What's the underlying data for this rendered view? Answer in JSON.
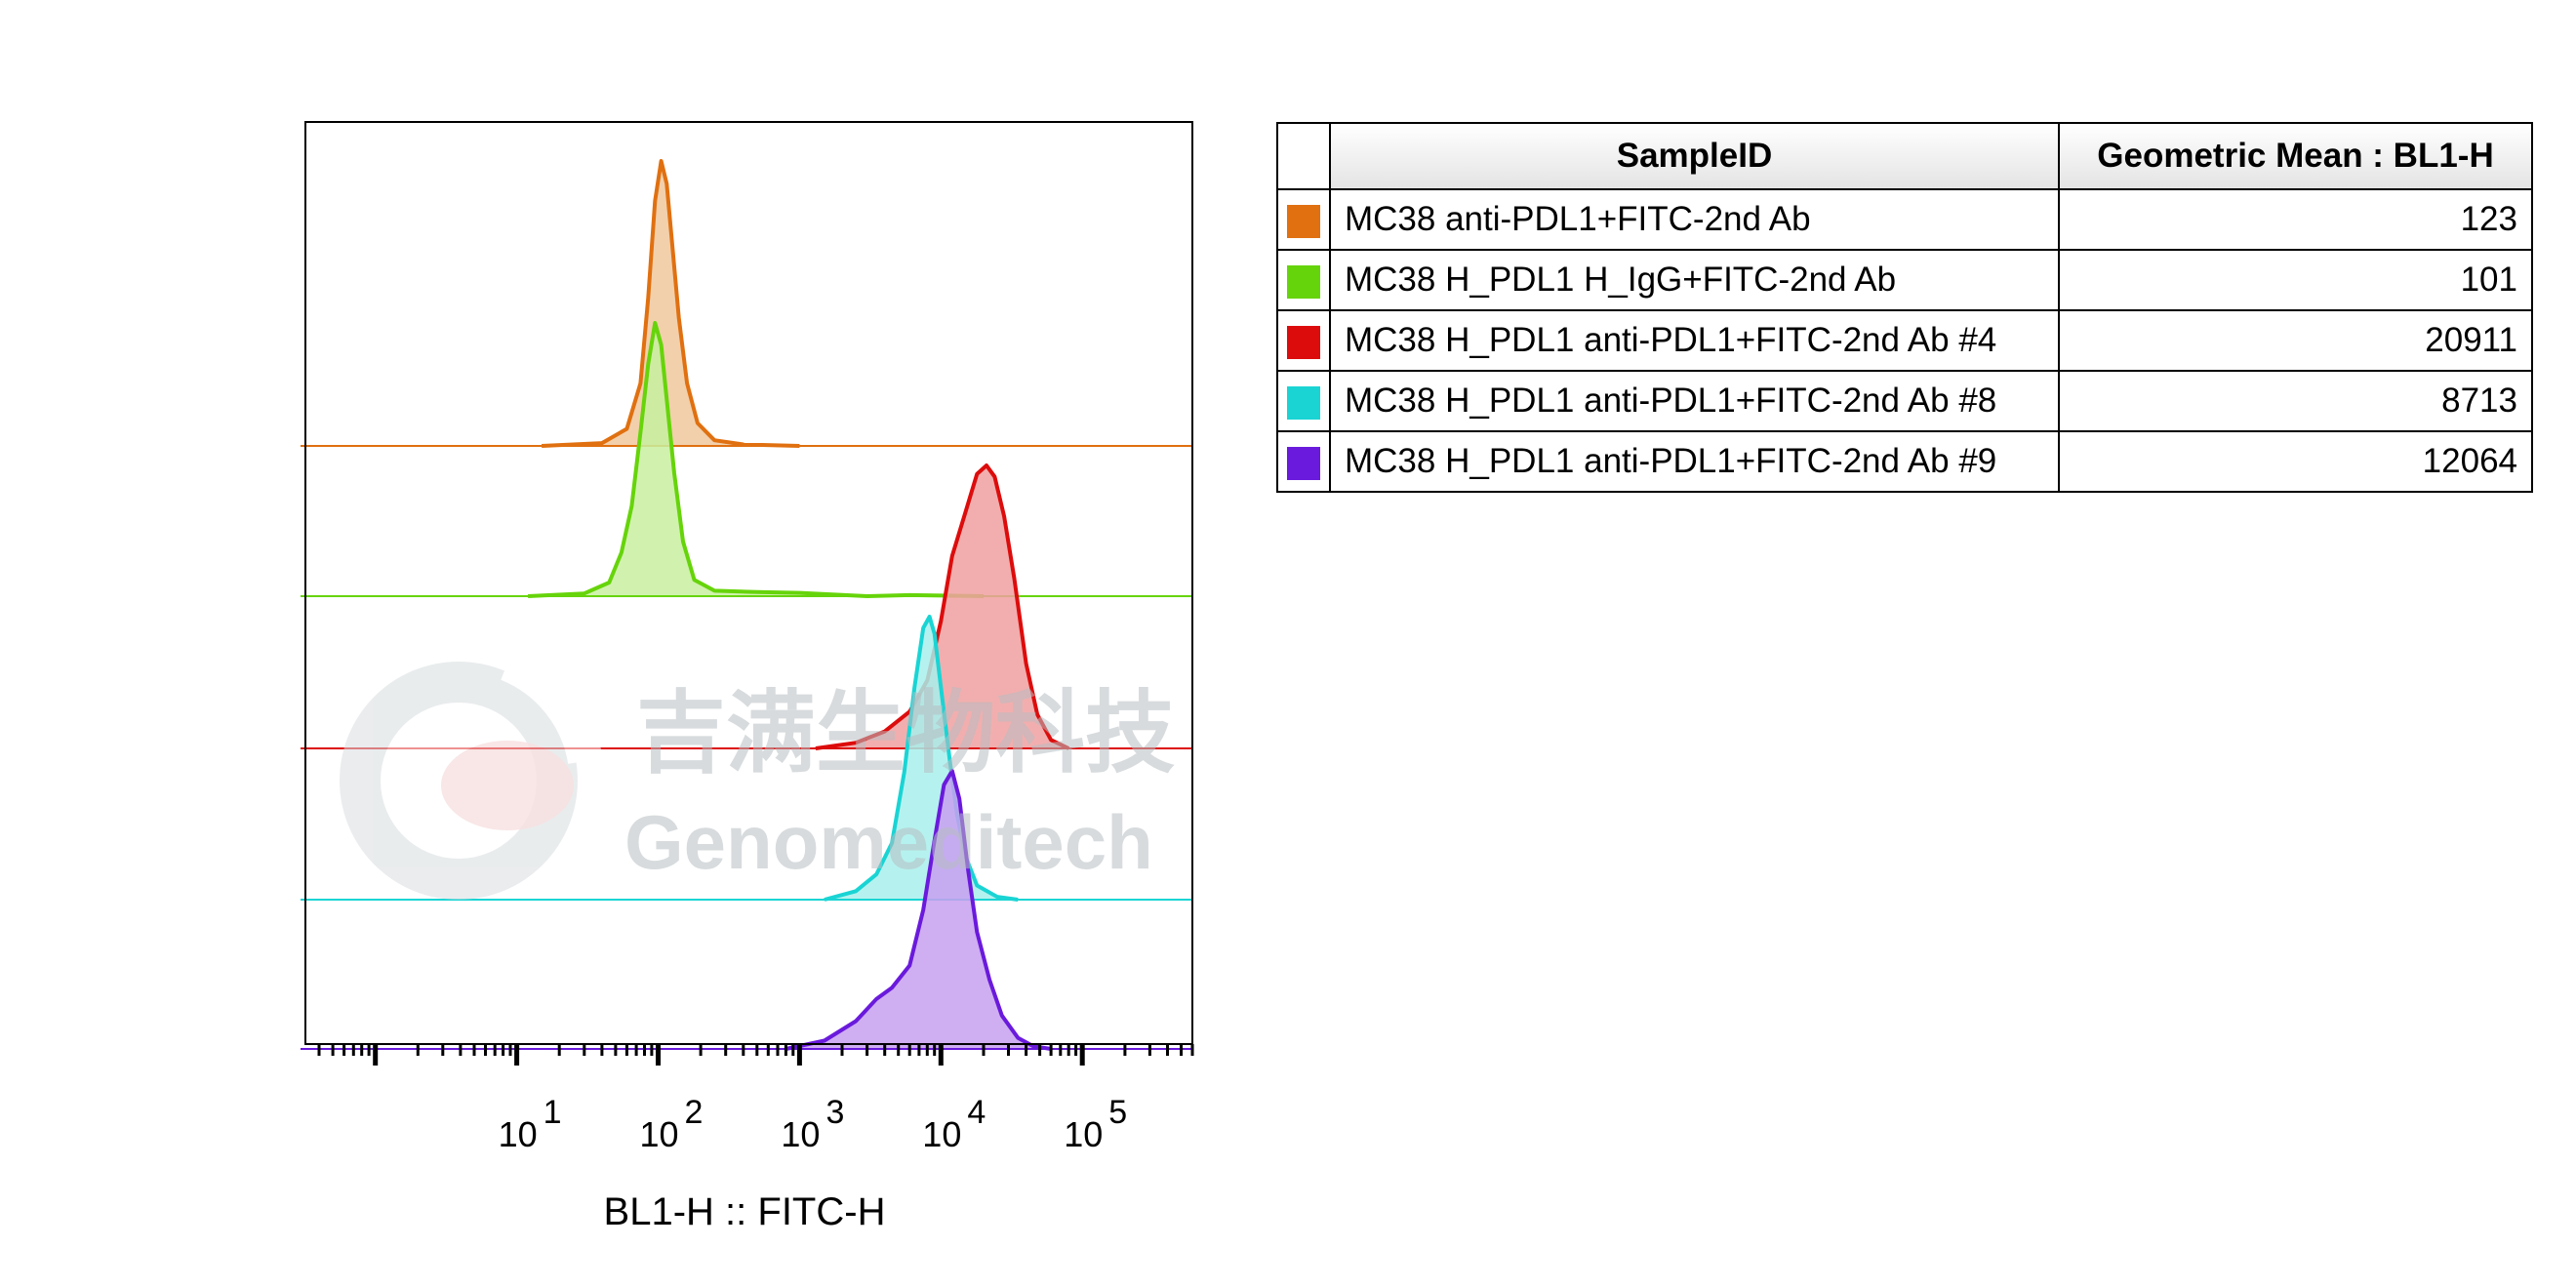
{
  "chart_data": {
    "type": "histogram-overlay",
    "xlabel": "BL1-H :: FITC-H",
    "x_scale": "log",
    "xlim": [
      0.32,
      600000
    ],
    "x_ticks": [
      {
        "value": 10,
        "base": "10",
        "exp": "1"
      },
      {
        "value": 100,
        "base": "10",
        "exp": "2"
      },
      {
        "value": 1000,
        "base": "10",
        "exp": "3"
      },
      {
        "value": 10000,
        "base": "10",
        "exp": "4"
      },
      {
        "value": 100000,
        "base": "10",
        "exp": "5"
      }
    ],
    "series": [
      {
        "name": "MC38 anti-PDL1+FITC-2nd Ab",
        "color": "#E07010",
        "fill": "#F0C89E",
        "geo_mean": 123,
        "profile": [
          [
            15,
            0
          ],
          [
            40,
            0.01
          ],
          [
            60,
            0.06
          ],
          [
            75,
            0.22
          ],
          [
            85,
            0.52
          ],
          [
            95,
            0.86
          ],
          [
            105,
            1.0
          ],
          [
            115,
            0.92
          ],
          [
            125,
            0.72
          ],
          [
            140,
            0.45
          ],
          [
            160,
            0.22
          ],
          [
            190,
            0.08
          ],
          [
            250,
            0.02
          ],
          [
            400,
            0.005
          ],
          [
            1000,
            0
          ]
        ]
      },
      {
        "name": "MC38 H_PDL1 H_IgG+FITC-2nd Ab",
        "color": "#66D40A",
        "fill": "#C8F0A0",
        "geo_mean": 101,
        "profile": [
          [
            12,
            0
          ],
          [
            30,
            0.01
          ],
          [
            45,
            0.05
          ],
          [
            55,
            0.16
          ],
          [
            65,
            0.33
          ],
          [
            75,
            0.6
          ],
          [
            85,
            0.85
          ],
          [
            95,
            1.0
          ],
          [
            105,
            0.92
          ],
          [
            115,
            0.72
          ],
          [
            130,
            0.45
          ],
          [
            150,
            0.2
          ],
          [
            180,
            0.06
          ],
          [
            250,
            0.02
          ],
          [
            500,
            0.015
          ],
          [
            1000,
            0.012
          ],
          [
            3000,
            0
          ],
          [
            6000,
            0.004
          ],
          [
            20000,
            0
          ]
        ]
      },
      {
        "name": "MC38 H_PDL1 anti-PDL1+FITC-2nd Ab #4",
        "color": "#DD0C0C",
        "fill": "#F0A0A0",
        "geo_mean": 20911,
        "profile": [
          [
            1300,
            0
          ],
          [
            2500,
            0.02
          ],
          [
            4000,
            0.06
          ],
          [
            6000,
            0.13
          ],
          [
            8000,
            0.24
          ],
          [
            10000,
            0.45
          ],
          [
            12000,
            0.68
          ],
          [
            15000,
            0.84
          ],
          [
            18000,
            0.97
          ],
          [
            21000,
            1.0
          ],
          [
            24000,
            0.96
          ],
          [
            28000,
            0.82
          ],
          [
            33000,
            0.6
          ],
          [
            40000,
            0.3
          ],
          [
            48000,
            0.12
          ],
          [
            60000,
            0.03
          ],
          [
            80000,
            0
          ]
        ]
      },
      {
        "name": "MC38 H_PDL1 anti-PDL1+FITC-2nd Ab #8",
        "color": "#1AD4D4",
        "fill": "#A8F0EC",
        "geo_mean": 8713,
        "profile": [
          [
            1500,
            0
          ],
          [
            2500,
            0.03
          ],
          [
            3500,
            0.09
          ],
          [
            4500,
            0.2
          ],
          [
            5500,
            0.45
          ],
          [
            6500,
            0.75
          ],
          [
            7500,
            0.96
          ],
          [
            8300,
            1.0
          ],
          [
            9000,
            0.94
          ],
          [
            10000,
            0.75
          ],
          [
            11500,
            0.5
          ],
          [
            13000,
            0.3
          ],
          [
            15000,
            0.15
          ],
          [
            18000,
            0.05
          ],
          [
            25000,
            0.01
          ],
          [
            35000,
            0
          ]
        ]
      },
      {
        "name": "MC38 H_PDL1 anti-PDL1+FITC-2nd Ab #9",
        "color": "#6A1ADC",
        "fill": "#C8A0F0",
        "geo_mean": 12064,
        "profile": [
          [
            800,
            0
          ],
          [
            1500,
            0.03
          ],
          [
            2500,
            0.1
          ],
          [
            3500,
            0.18
          ],
          [
            4500,
            0.22
          ],
          [
            6000,
            0.3
          ],
          [
            7500,
            0.5
          ],
          [
            9000,
            0.75
          ],
          [
            10500,
            0.95
          ],
          [
            12000,
            1.0
          ],
          [
            13500,
            0.9
          ],
          [
            15500,
            0.65
          ],
          [
            18000,
            0.42
          ],
          [
            22000,
            0.25
          ],
          [
            27000,
            0.12
          ],
          [
            35000,
            0.04
          ],
          [
            45000,
            0.01
          ],
          [
            60000,
            0
          ]
        ]
      }
    ]
  },
  "table": {
    "headers": [
      "SampleID",
      "Geometric Mean : BL1-H"
    ],
    "rows": [
      {
        "color": "#E07010",
        "sample": "MC38 anti-PDL1+FITC-2nd Ab",
        "value": "123"
      },
      {
        "color": "#66D40A",
        "sample": "MC38 H_PDL1 H_IgG+FITC-2nd Ab",
        "value": "101"
      },
      {
        "color": "#DD0C0C",
        "sample": "MC38 H_PDL1 anti-PDL1+FITC-2nd Ab #4",
        "value": "20911"
      },
      {
        "color": "#1AD4D4",
        "sample": "MC38 H_PDL1 anti-PDL1+FITC-2nd Ab #8",
        "value": "8713"
      },
      {
        "color": "#6A1ADC",
        "sample": "MC38 H_PDL1 anti-PDL1+FITC-2nd Ab #9",
        "value": "12064"
      }
    ]
  },
  "watermark": {
    "cn": "吉满生物科技",
    "en": "Genomeditech"
  }
}
